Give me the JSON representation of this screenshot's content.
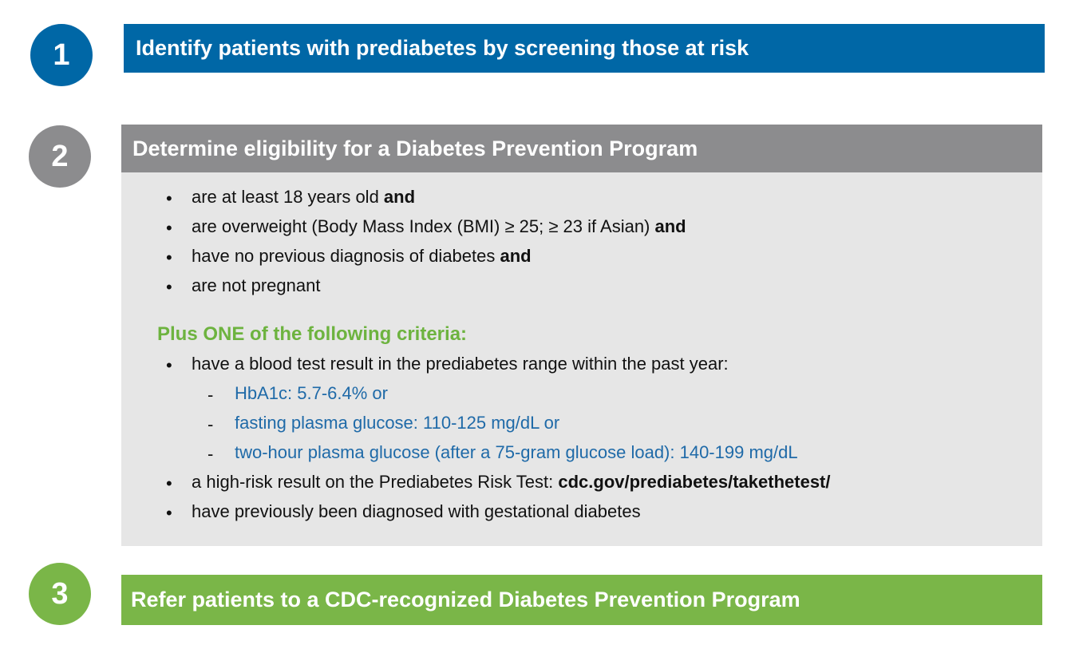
{
  "colors": {
    "step1": "#0067a6",
    "step2": "#8c8c8e",
    "step3": "#7ab648",
    "panel_bg": "#e6e6e6",
    "criteria_heading": "#6db33f",
    "sub_item_text": "#1f6aa8"
  },
  "steps": [
    {
      "number": "1",
      "title": "Identify patients with prediabetes by screening those at risk"
    },
    {
      "number": "2",
      "title": "Determine eligibility for a Diabetes Prevention Program"
    },
    {
      "number": "3",
      "title": "Refer patients to a CDC-recognized Diabetes Prevention Program"
    }
  ],
  "eligibility": {
    "bullet_symbol": "•",
    "dash_symbol": "-",
    "requirements": [
      {
        "text": "are at least 18 years old ",
        "emphasis": "and"
      },
      {
        "text": "are overweight (Body Mass Index (BMI) ≥ 25; ≥ 23 if Asian) ",
        "emphasis": "and"
      },
      {
        "text": "have no previous diagnosis of diabetes ",
        "emphasis": "and"
      },
      {
        "text": "are not pregnant",
        "emphasis": ""
      }
    ],
    "criteria_heading": "Plus ONE of the following criteria:",
    "criteria": {
      "blood_test": "have a blood test result in the prediabetes range within the past year:",
      "blood_test_ranges": [
        "HbA1c: 5.7-6.4% or",
        "fasting plasma glucose: 110-125 mg/dL or",
        "two-hour plasma glucose (after a 75-gram glucose load): 140-199 mg/dL"
      ],
      "risk_test_text": "a high-risk result on the Prediabetes Risk Test: ",
      "risk_test_link": "cdc.gov/prediabetes/takethetest/",
      "gestational": "have previously been diagnosed with gestational diabetes"
    }
  }
}
